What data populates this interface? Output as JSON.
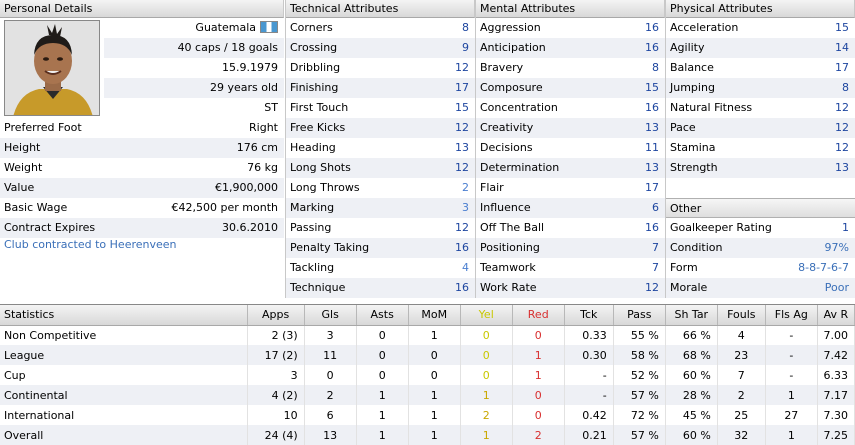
{
  "personal": {
    "header": "Personal Details",
    "nationality": "Guatemala",
    "caps": "40 caps / 18 goals",
    "dob": "15.9.1979",
    "age": "29 years old",
    "position": "ST",
    "rows": [
      {
        "label": "Preferred Foot",
        "value": "Right"
      },
      {
        "label": "Height",
        "value": "176 cm"
      },
      {
        "label": "Weight",
        "value": "76 kg"
      },
      {
        "label": "Value",
        "value": "€1,900,000"
      },
      {
        "label": "Basic Wage",
        "value": "€42,500 per month"
      },
      {
        "label": "Contract Expires",
        "value": "30.6.2010"
      }
    ],
    "club_link": "Club contracted to Heerenveen"
  },
  "technical": {
    "header": "Technical Attributes",
    "rows": [
      {
        "label": "Corners",
        "value": "8"
      },
      {
        "label": "Crossing",
        "value": "9"
      },
      {
        "label": "Dribbling",
        "value": "12"
      },
      {
        "label": "Finishing",
        "value": "17"
      },
      {
        "label": "First Touch",
        "value": "15"
      },
      {
        "label": "Free Kicks",
        "value": "12"
      },
      {
        "label": "Heading",
        "value": "13"
      },
      {
        "label": "Long Shots",
        "value": "12"
      },
      {
        "label": "Long Throws",
        "value": "2"
      },
      {
        "label": "Marking",
        "value": "3"
      },
      {
        "label": "Passing",
        "value": "12"
      },
      {
        "label": "Penalty Taking",
        "value": "16"
      },
      {
        "label": "Tackling",
        "value": "4"
      },
      {
        "label": "Technique",
        "value": "16"
      }
    ]
  },
  "mental": {
    "header": "Mental Attributes",
    "rows": [
      {
        "label": "Aggression",
        "value": "16"
      },
      {
        "label": "Anticipation",
        "value": "16"
      },
      {
        "label": "Bravery",
        "value": "8"
      },
      {
        "label": "Composure",
        "value": "15"
      },
      {
        "label": "Concentration",
        "value": "16"
      },
      {
        "label": "Creativity",
        "value": "13"
      },
      {
        "label": "Decisions",
        "value": "11"
      },
      {
        "label": "Determination",
        "value": "13"
      },
      {
        "label": "Flair",
        "value": "17"
      },
      {
        "label": "Influence",
        "value": "6"
      },
      {
        "label": "Off The Ball",
        "value": "16"
      },
      {
        "label": "Positioning",
        "value": "7"
      },
      {
        "label": "Teamwork",
        "value": "7"
      },
      {
        "label": "Work Rate",
        "value": "12"
      }
    ]
  },
  "physical": {
    "header": "Physical Attributes",
    "rows": [
      {
        "label": "Acceleration",
        "value": "15"
      },
      {
        "label": "Agility",
        "value": "14"
      },
      {
        "label": "Balance",
        "value": "17"
      },
      {
        "label": "Jumping",
        "value": "8"
      },
      {
        "label": "Natural Fitness",
        "value": "12"
      },
      {
        "label": "Pace",
        "value": "12"
      },
      {
        "label": "Stamina",
        "value": "12"
      },
      {
        "label": "Strength",
        "value": "13"
      }
    ]
  },
  "other": {
    "header": "Other",
    "rows": [
      {
        "label": "Goalkeeper Rating",
        "value": "1"
      },
      {
        "label": "Condition",
        "value": "97%"
      },
      {
        "label": "Form",
        "value": "8-8-7-6-7"
      },
      {
        "label": "Morale",
        "value": "Poor"
      }
    ]
  },
  "stats": {
    "columns": [
      "Statistics",
      "Apps",
      "Gls",
      "Asts",
      "MoM",
      "Yel",
      "Red",
      "Tck",
      "Pass",
      "Sh Tar",
      "Fouls",
      "Fls Ag",
      "Av R"
    ],
    "rows": [
      [
        "Non Competitive",
        "2 (3)",
        "3",
        "0",
        "1",
        "0",
        "0",
        "0.33",
        "55 %",
        "66 %",
        "4",
        "-",
        "7.00"
      ],
      [
        "League",
        "17 (2)",
        "11",
        "0",
        "0",
        "0",
        "1",
        "0.30",
        "58 %",
        "68 %",
        "23",
        "-",
        "7.42"
      ],
      [
        "Cup",
        "3",
        "0",
        "0",
        "0",
        "0",
        "1",
        "-",
        "52 %",
        "60 %",
        "7",
        "-",
        "6.33"
      ],
      [
        "Continental",
        "4 (2)",
        "2",
        "1",
        "1",
        "1",
        "0",
        "-",
        "57 %",
        "28 %",
        "2",
        "1",
        "7.17"
      ],
      [
        "International",
        "10",
        "6",
        "1",
        "1",
        "2",
        "0",
        "0.42",
        "72 %",
        "45 %",
        "25",
        "27",
        "7.30"
      ],
      [
        "Overall",
        "24 (4)",
        "13",
        "1",
        "1",
        "1",
        "2",
        "0.21",
        "57 %",
        "60 %",
        "32",
        "1",
        "7.25"
      ]
    ]
  },
  "colors": {
    "value_blue": "#1e46a0",
    "link_blue": "#3a6fb8",
    "yellow_card": "#c8c800",
    "red_card": "#d83030",
    "alt_row": "#eef0f5"
  }
}
